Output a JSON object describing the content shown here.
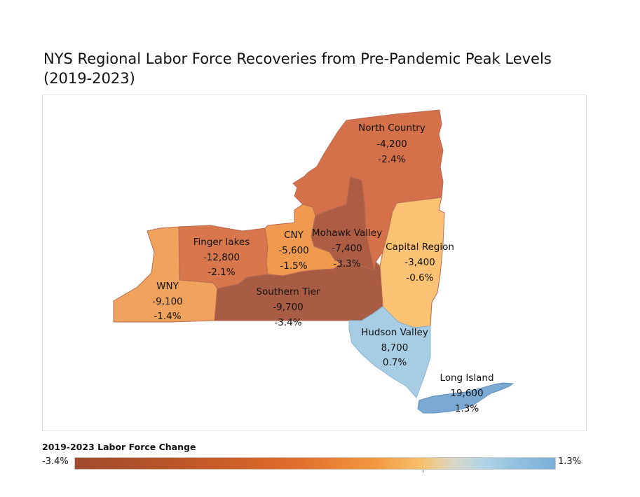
{
  "title": "NYS Regional Labor Force Recoveries from Pre-Pandemic Peak Levels (2019-2023)",
  "legend": {
    "title": "2019-2023 Labor Force Change",
    "min_label": "-3.4%",
    "max_label": "1.3%",
    "min_value": -3.4,
    "max_value": 1.3,
    "colors": [
      "#9f4a2c",
      "#bd5628",
      "#e06a2a",
      "#f2973e",
      "#f8bf6a",
      "#d8d8c8",
      "#b1d3e6",
      "#8fbedf",
      "#7baed9"
    ]
  },
  "regions": [
    {
      "name": "North Country",
      "change": "-4,200",
      "pct": "-2.4%",
      "pct_value": -2.4,
      "color": "#d5714a"
    },
    {
      "name": "Finger lakes",
      "change": "-12,800",
      "pct": "-2.1%",
      "pct_value": -2.1,
      "color": "#d8774c"
    },
    {
      "name": "CNY",
      "change": "-5,600",
      "pct": "-1.5%",
      "pct_value": -1.5,
      "color": "#ef9a4f"
    },
    {
      "name": "Mohawk Valley",
      "change": "-7,400",
      "pct": "-3.3%",
      "pct_value": -3.3,
      "color": "#ad5d44"
    },
    {
      "name": "Capital Region",
      "change": "-3,400",
      "pct": "-0.6%",
      "pct_value": -0.6,
      "color": "#fbc274"
    },
    {
      "name": "WNY",
      "change": "-9,100",
      "pct": "-1.4%",
      "pct_value": -1.4,
      "color": "#f0a35c"
    },
    {
      "name": "Southern Tier",
      "change": "-9,700",
      "pct": "-3.4%",
      "pct_value": -3.4,
      "color": "#a95c44"
    },
    {
      "name": "Hudson Valley",
      "change": "8,700",
      "pct": "0.7%",
      "pct_value": 0.7,
      "color": "#a7cde5"
    },
    {
      "name": "Long Island",
      "change": "19,600",
      "pct": "1.3%",
      "pct_value": 1.3,
      "color": "#7aa9d4"
    }
  ]
}
